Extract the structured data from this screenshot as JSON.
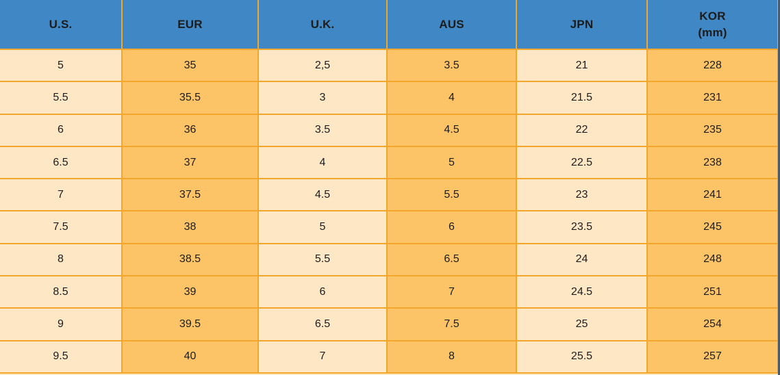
{
  "chart_data": {
    "type": "table",
    "columns": [
      {
        "id": "us",
        "label": "U.S.",
        "tone": "cream"
      },
      {
        "id": "eur",
        "label": "EUR",
        "tone": "orange"
      },
      {
        "id": "uk",
        "label": "U.K.",
        "tone": "cream"
      },
      {
        "id": "aus",
        "label": "AUS",
        "tone": "orange"
      },
      {
        "id": "jpn",
        "label": "JPN",
        "tone": "cream"
      },
      {
        "id": "kor",
        "label": "KOR",
        "sublabel": "(mm)",
        "tone": "orange"
      }
    ],
    "rows": [
      [
        "5",
        "35",
        "2,5",
        "3.5",
        "21",
        "228"
      ],
      [
        "5.5",
        "35.5",
        "3",
        "4",
        "21.5",
        "231"
      ],
      [
        "6",
        "36",
        "3.5",
        "4.5",
        "22",
        "235"
      ],
      [
        "6.5",
        "37",
        "4",
        "5",
        "22.5",
        "238"
      ],
      [
        "7",
        "37.5",
        "4.5",
        "5.5",
        "23",
        "241"
      ],
      [
        "7.5",
        "38",
        "5",
        "6",
        "23.5",
        "245"
      ],
      [
        "8",
        "38.5",
        "5.5",
        "6.5",
        "24",
        "248"
      ],
      [
        "8.5",
        "39",
        "6",
        "7",
        "24.5",
        "251"
      ],
      [
        "9",
        "39.5",
        "6.5",
        "7.5",
        "25",
        "254"
      ],
      [
        "9.5",
        "40",
        "7",
        "8",
        "25.5",
        "257"
      ]
    ]
  },
  "colors": {
    "header_bg": "#4087c6",
    "cell_cream": "#fde7c5",
    "cell_orange": "#fdc367",
    "border": "#f2a72c",
    "text": "#1c1c1c",
    "screen_edge": "#4a5b6e"
  }
}
